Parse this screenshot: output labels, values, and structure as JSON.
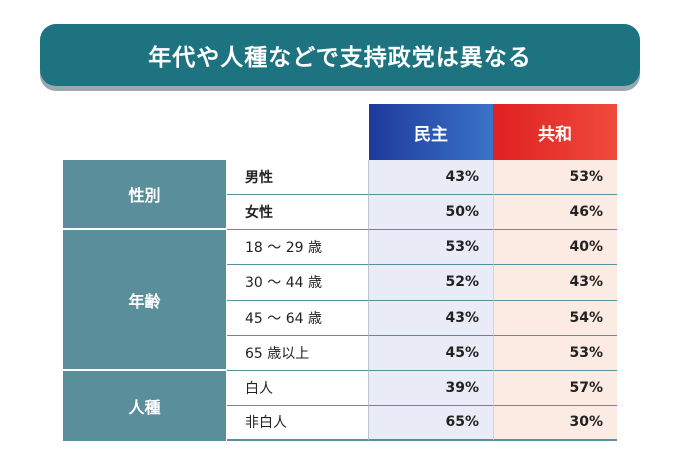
{
  "title": "年代や人種などで支持政党は異なる",
  "columns": {
    "dem": "民主",
    "rep": "共和"
  },
  "groups": [
    {
      "label": "性別"
    },
    {
      "label": "年齢"
    },
    {
      "label": "人種"
    }
  ],
  "rows": [
    {
      "label": "男性",
      "dem": "43%",
      "rep": "53%"
    },
    {
      "label": "女性",
      "dem": "50%",
      "rep": "46%"
    },
    {
      "label": "18 〜 29 歳",
      "dem": "53%",
      "rep": "40%"
    },
    {
      "label": "30 〜 44 歳",
      "dem": "52%",
      "rep": "43%"
    },
    {
      "label": "45 〜 64 歳",
      "dem": "43%",
      "rep": "54%"
    },
    {
      "label": "65 歳以上",
      "dem": "45%",
      "rep": "53%"
    },
    {
      "label": "白人",
      "dem": "39%",
      "rep": "57%"
    },
    {
      "label": "非白人",
      "dem": "65%",
      "rep": "30%"
    }
  ],
  "colors": {
    "banner": "#1d7480",
    "dem": "#1e3a9c",
    "rep": "#e02020",
    "group": "#5a8e9b"
  }
}
